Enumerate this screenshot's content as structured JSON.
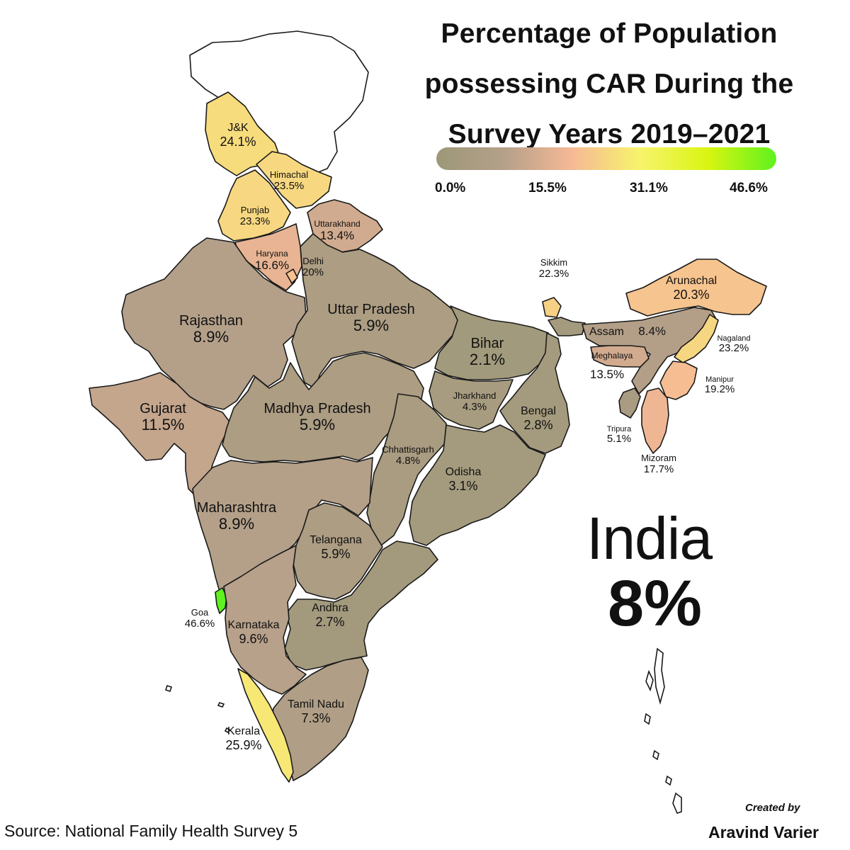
{
  "title_lines": [
    "Percentage of Population",
    "possessing CAR During the",
    "Survey Years 2019–2021"
  ],
  "legend": {
    "min": 0.0,
    "max": 46.6,
    "tick_labels": [
      "0.0%",
      "15.5%",
      "31.1%",
      "46.6%"
    ],
    "gradient_colors": [
      "#9c9878",
      "#b5a08a",
      "#f6b995",
      "#f7f46c",
      "#d9f511",
      "#5ef21e"
    ]
  },
  "regions": [
    {
      "key": "jk",
      "name": "J&K",
      "value_text": "24.1%",
      "value": 24.1
    },
    {
      "key": "himachal",
      "name": "Himachal",
      "value_text": "23.5%",
      "value": 23.5
    },
    {
      "key": "punjab",
      "name": "Punjab",
      "value_text": "23.3%",
      "value": 23.3
    },
    {
      "key": "uttarakhand",
      "name": "Uttarakhand",
      "value_text": "13.4%",
      "value": 13.4
    },
    {
      "key": "haryana",
      "name": "Haryana",
      "value_text": "16.6%",
      "value": 16.6
    },
    {
      "key": "delhi",
      "name": "Delhi",
      "value_text": "20%",
      "value": 20
    },
    {
      "key": "rajasthan",
      "name": "Rajasthan",
      "value_text": "8.9%",
      "value": 8.9
    },
    {
      "key": "uttar_pradesh",
      "name": "Uttar Pradesh",
      "value_text": "5.9%",
      "value": 5.9
    },
    {
      "key": "bihar",
      "name": "Bihar",
      "value_text": "2.1%",
      "value": 2.1
    },
    {
      "key": "gujarat",
      "name": "Gujarat",
      "value_text": "11.5%",
      "value": 11.5
    },
    {
      "key": "madhya_pradesh",
      "name": "Madhya Pradesh",
      "value_text": "5.9%",
      "value": 5.9
    },
    {
      "key": "jharkhand",
      "name": "Jharkhand",
      "value_text": "4.3%",
      "value": 4.3
    },
    {
      "key": "bengal",
      "name": "Bengal",
      "value_text": "2.8%",
      "value": 2.8
    },
    {
      "key": "chhattisgarh",
      "name": "Chhattisgarh",
      "value_text": "4.8%",
      "value": 4.8
    },
    {
      "key": "odisha",
      "name": "Odisha",
      "value_text": "3.1%",
      "value": 3.1
    },
    {
      "key": "maharashtra",
      "name": "Maharashtra",
      "value_text": "8.9%",
      "value": 8.9
    },
    {
      "key": "telangana",
      "name": "Telangana",
      "value_text": "5.9%",
      "value": 5.9
    },
    {
      "key": "andhra",
      "name": "Andhra",
      "value_text": "2.7%",
      "value": 2.7
    },
    {
      "key": "goa",
      "name": "Goa",
      "value_text": "46.6%",
      "value": 46.6
    },
    {
      "key": "karnataka",
      "name": "Karnataka",
      "value_text": "9.6%",
      "value": 9.6
    },
    {
      "key": "tamil_nadu",
      "name": "Tamil Nadu",
      "value_text": "7.3%",
      "value": 7.3
    },
    {
      "key": "kerala",
      "name": "Kerala",
      "value_text": "25.9%",
      "value": 25.9
    },
    {
      "key": "sikkim",
      "name": "Sikkim",
      "value_text": "22.3%",
      "value": 22.3
    },
    {
      "key": "arunachal",
      "name": "Arunachal",
      "value_text": "20.3%",
      "value": 20.3
    },
    {
      "key": "assam",
      "name": "Assam",
      "value_text": "8.4%",
      "value": 8.4
    },
    {
      "key": "nagaland",
      "name": "Nagaland",
      "value_text": "23.2%",
      "value": 23.2
    },
    {
      "key": "meghalaya",
      "name": "Meghalaya",
      "value_text": "13.5%",
      "value": 13.5
    },
    {
      "key": "manipur",
      "name": "Manipur",
      "value_text": "19.2%",
      "value": 19.2
    },
    {
      "key": "tripura",
      "name": "Tripura",
      "value_text": "5.1%",
      "value": 5.1
    },
    {
      "key": "mizoram",
      "name": "Mizoram",
      "value_text": "17.7%",
      "value": 17.7
    }
  ],
  "national": {
    "name": "India",
    "value_text": "8%"
  },
  "source": "Source: National Family Health Survey 5",
  "credit": {
    "prefix": "Created by",
    "author": "Aravind Varier"
  }
}
